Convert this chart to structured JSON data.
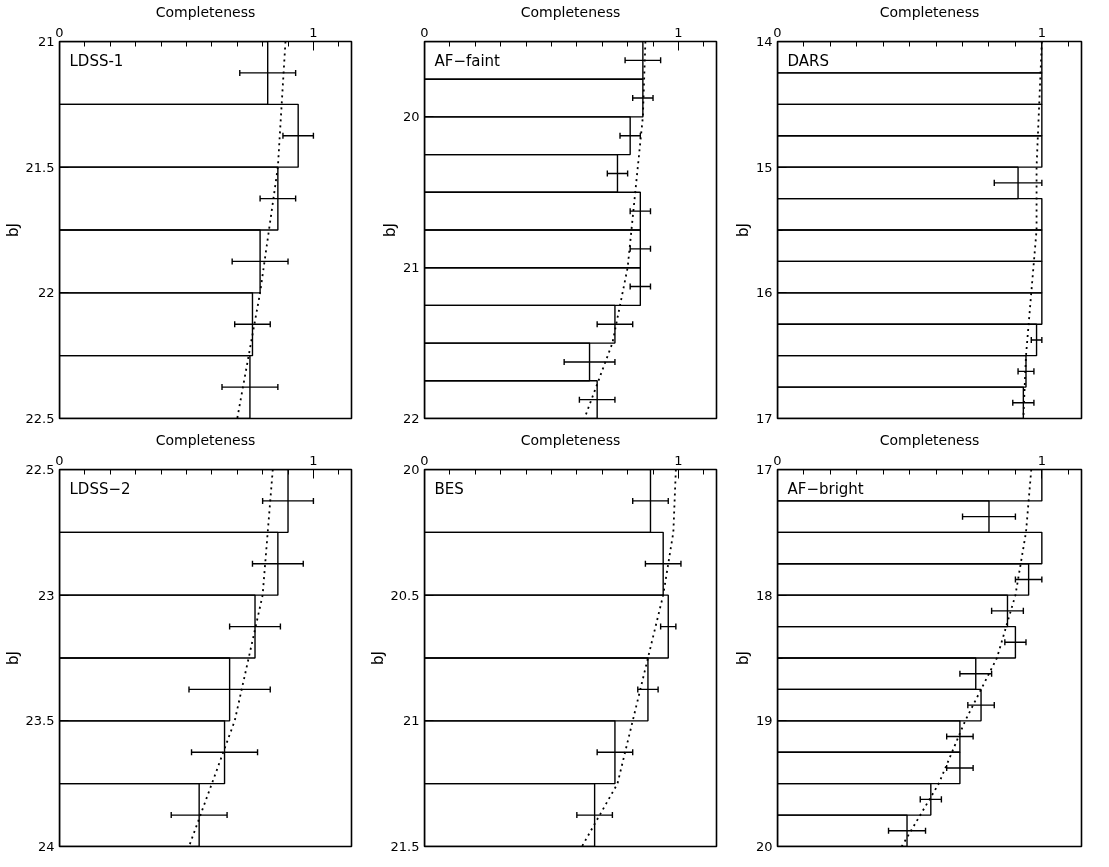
{
  "chart_data": [
    {
      "type": "bar",
      "title": "LDSS-1",
      "orientation": "horizontal",
      "xlabel": "Completeness",
      "ylabel": "bJ",
      "xlim": [
        0,
        1.15
      ],
      "xticks": [
        0,
        {
          "value": 0.1,
          "label": null
        },
        {
          "value": 0.2,
          "label": null
        },
        {
          "value": 0.3,
          "label": null
        },
        {
          "value": 0.4,
          "label": null
        },
        {
          "value": 0.5,
          "label": null
        },
        {
          "value": 0.6,
          "label": null
        },
        {
          "value": 0.7,
          "label": null
        },
        {
          "value": 0.8,
          "label": null
        },
        {
          "value": 0.9,
          "label": null
        },
        1,
        {
          "value": 1.1,
          "label": null
        }
      ],
      "ylim": [
        22.5,
        21
      ],
      "yticks": [
        21,
        21.5,
        22,
        22.5
      ],
      "series": [
        {
          "color": "#000000",
          "x": [
            21.125,
            21.375,
            21.625,
            21.875,
            22.125,
            22.375
          ],
          "values": [
            0.82,
            0.94,
            0.86,
            0.79,
            0.76,
            0.75
          ],
          "errors": [
            0.11,
            0.06,
            0.07,
            0.11,
            0.07,
            0.11
          ]
        },
        {
          "type": "line",
          "color": "#000000",
          "line_style": "dotted",
          "x": [
            21,
            21.5,
            22,
            22.5
          ],
          "values": [
            0.89,
            0.86,
            0.79,
            0.7
          ]
        }
      ]
    },
    {
      "type": "bar",
      "title": "AF−faint",
      "orientation": "horizontal",
      "xlabel": "Completeness",
      "ylabel": "bJ",
      "xlim": [
        0,
        1.15
      ],
      "xticks": [
        0,
        {
          "value": 0.1,
          "label": null
        },
        {
          "value": 0.2,
          "label": null
        },
        {
          "value": 0.3,
          "label": null
        },
        {
          "value": 0.4,
          "label": null
        },
        {
          "value": 0.5,
          "label": null
        },
        {
          "value": 0.6,
          "label": null
        },
        {
          "value": 0.7,
          "label": null
        },
        {
          "value": 0.8,
          "label": null
        },
        {
          "value": 0.9,
          "label": null
        },
        1,
        {
          "value": 1.1,
          "label": null
        }
      ],
      "ylim": [
        22,
        19.5
      ],
      "yticks": [
        20,
        {
          "value": 20.5,
          "label": null
        },
        21,
        {
          "value": 21.5,
          "label": null
        },
        22
      ],
      "series": [
        {
          "color": "#000000",
          "x": [
            19.625,
            19.875,
            20.125,
            20.375,
            20.625,
            20.875,
            21.125,
            21.375,
            21.625,
            21.875
          ],
          "values": [
            0.86,
            0.86,
            0.81,
            0.76,
            0.85,
            0.85,
            0.85,
            0.75,
            0.65,
            0.68
          ],
          "errors": [
            0.07,
            0.04,
            0.04,
            0.04,
            0.04,
            0.04,
            0.04,
            0.07,
            0.1,
            0.07
          ]
        },
        {
          "type": "line",
          "color": "#000000",
          "line_style": "dotted",
          "x": [
            19.5,
            20,
            20.5,
            21,
            21.5,
            22
          ],
          "values": [
            0.87,
            0.86,
            0.83,
            0.8,
            0.74,
            0.63
          ]
        }
      ]
    },
    {
      "type": "bar",
      "title": "DARS",
      "orientation": "horizontal",
      "xlabel": "Completeness",
      "ylabel": "bJ",
      "xlim": [
        0,
        1.15
      ],
      "xticks": [
        0,
        {
          "value": 0.1,
          "label": null
        },
        {
          "value": 0.2,
          "label": null
        },
        {
          "value": 0.3,
          "label": null
        },
        {
          "value": 0.4,
          "label": null
        },
        {
          "value": 0.5,
          "label": null
        },
        {
          "value": 0.6,
          "label": null
        },
        {
          "value": 0.7,
          "label": null
        },
        {
          "value": 0.8,
          "label": null
        },
        {
          "value": 0.9,
          "label": null
        },
        1,
        {
          "value": 1.1,
          "label": null
        }
      ],
      "ylim": [
        17,
        14
      ],
      "yticks": [
        14,
        {
          "value": 14.5,
          "label": null
        },
        15,
        {
          "value": 15.5,
          "label": null
        },
        16,
        {
          "value": 16.5,
          "label": null
        },
        17
      ],
      "series": [
        {
          "color": "#000000",
          "x": [
            14.125,
            14.375,
            14.625,
            14.875,
            15.125,
            15.375,
            15.625,
            15.875,
            16.125,
            16.375,
            16.625,
            16.875
          ],
          "values": [
            1.0,
            1.0,
            1.0,
            1.0,
            0.91,
            1.0,
            1.0,
            1.0,
            1.0,
            0.98,
            0.94,
            0.93
          ],
          "errors": [
            null,
            null,
            null,
            null,
            0.09,
            null,
            null,
            null,
            null,
            0.02,
            0.03,
            0.04
          ]
        },
        {
          "type": "line",
          "color": "#000000",
          "line_style": "dotted",
          "x": [
            14,
            15,
            15.5,
            16,
            16.5,
            17
          ],
          "values": [
            1.0,
            0.98,
            0.98,
            0.96,
            0.94,
            0.93
          ]
        }
      ]
    },
    {
      "type": "bar",
      "title": "LDSS−2",
      "orientation": "horizontal",
      "xlabel": "Completeness",
      "ylabel": "bJ",
      "xlim": [
        0,
        1.15
      ],
      "xticks": [
        0,
        {
          "value": 0.1,
          "label": null
        },
        {
          "value": 0.2,
          "label": null
        },
        {
          "value": 0.3,
          "label": null
        },
        {
          "value": 0.4,
          "label": null
        },
        {
          "value": 0.5,
          "label": null
        },
        {
          "value": 0.6,
          "label": null
        },
        {
          "value": 0.7,
          "label": null
        },
        {
          "value": 0.8,
          "label": null
        },
        {
          "value": 0.9,
          "label": null
        },
        1,
        {
          "value": 1.1,
          "label": null
        }
      ],
      "ylim": [
        24,
        22.5
      ],
      "yticks": [
        22.5,
        23,
        23.5,
        24
      ],
      "series": [
        {
          "color": "#000000",
          "x": [
            22.625,
            22.875,
            23.125,
            23.375,
            23.625,
            23.875
          ],
          "values": [
            0.9,
            0.86,
            0.77,
            0.67,
            0.65,
            0.55
          ],
          "errors": [
            0.1,
            0.1,
            0.1,
            0.16,
            0.13,
            0.11
          ]
        },
        {
          "type": "line",
          "color": "#000000",
          "line_style": "dotted",
          "x": [
            22.5,
            23,
            23.5,
            24
          ],
          "values": [
            0.84,
            0.8,
            0.69,
            0.51
          ]
        }
      ]
    },
    {
      "type": "bar",
      "title": "BES",
      "orientation": "horizontal",
      "xlabel": "Completeness",
      "ylabel": "bJ",
      "xlim": [
        0,
        1.15
      ],
      "xticks": [
        0,
        {
          "value": 0.1,
          "label": null
        },
        {
          "value": 0.2,
          "label": null
        },
        {
          "value": 0.3,
          "label": null
        },
        {
          "value": 0.4,
          "label": null
        },
        {
          "value": 0.5,
          "label": null
        },
        {
          "value": 0.6,
          "label": null
        },
        {
          "value": 0.7,
          "label": null
        },
        {
          "value": 0.8,
          "label": null
        },
        {
          "value": 0.9,
          "label": null
        },
        1,
        {
          "value": 1.1,
          "label": null
        }
      ],
      "ylim": [
        21.5,
        20
      ],
      "yticks": [
        20,
        20.5,
        21,
        21.5
      ],
      "series": [
        {
          "color": "#000000",
          "x": [
            20.125,
            20.375,
            20.625,
            20.875,
            21.125,
            21.375
          ],
          "values": [
            0.89,
            0.94,
            0.96,
            0.88,
            0.75,
            0.67
          ],
          "errors": [
            0.07,
            0.07,
            0.03,
            0.04,
            0.07,
            0.07
          ]
        },
        {
          "type": "line",
          "color": "#000000",
          "line_style": "dotted",
          "x": [
            20,
            20.25,
            20.5,
            20.75,
            21,
            21.25,
            21.5
          ],
          "values": [
            0.99,
            0.98,
            0.94,
            0.88,
            0.82,
            0.76,
            0.62
          ]
        }
      ]
    },
    {
      "type": "bar",
      "title": "AF−bright",
      "orientation": "horizontal",
      "xlabel": "Completeness",
      "ylabel": "bJ",
      "xlim": [
        0,
        1.15
      ],
      "xticks": [
        0,
        {
          "value": 0.1,
          "label": null
        },
        {
          "value": 0.2,
          "label": null
        },
        {
          "value": 0.3,
          "label": null
        },
        {
          "value": 0.4,
          "label": null
        },
        {
          "value": 0.5,
          "label": null
        },
        {
          "value": 0.6,
          "label": null
        },
        {
          "value": 0.7,
          "label": null
        },
        {
          "value": 0.8,
          "label": null
        },
        {
          "value": 0.9,
          "label": null
        },
        1,
        {
          "value": 1.1,
          "label": null
        }
      ],
      "ylim": [
        20,
        17
      ],
      "yticks": [
        17,
        {
          "value": 17.5,
          "label": null
        },
        18,
        {
          "value": 18.5,
          "label": null
        },
        19,
        {
          "value": 19.5,
          "label": null
        },
        20
      ],
      "series": [
        {
          "color": "#000000",
          "x": [
            17.125,
            17.375,
            17.625,
            17.875,
            18.125,
            18.375,
            18.625,
            18.875,
            19.125,
            19.375,
            19.625,
            19.875
          ],
          "values": [
            1.0,
            0.8,
            1.0,
            0.95,
            0.87,
            0.9,
            0.75,
            0.77,
            0.69,
            0.69,
            0.58,
            0.49
          ],
          "errors": [
            null,
            0.1,
            null,
            0.05,
            0.06,
            0.04,
            0.06,
            0.05,
            0.05,
            0.05,
            0.04,
            0.07
          ]
        },
        {
          "type": "line",
          "color": "#000000",
          "line_style": "dotted",
          "x": [
            17,
            17.5,
            18,
            18.5,
            19,
            19.5,
            20
          ],
          "values": [
            0.96,
            0.94,
            0.9,
            0.83,
            0.71,
            0.61,
            0.47
          ]
        }
      ]
    }
  ]
}
